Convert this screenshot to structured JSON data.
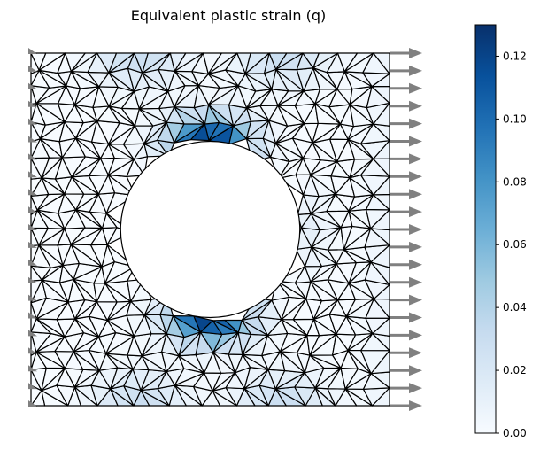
{
  "chart_data": {
    "type": "heatmap",
    "title": "Equivalent plastic strain (q)",
    "colormap": "Blues",
    "colorbar": {
      "range": [
        0.0,
        0.13
      ],
      "ticks": [
        0.0,
        0.02,
        0.04,
        0.06,
        0.08,
        0.1,
        0.12
      ],
      "tick_labels": [
        "0.00",
        "0.02",
        "0.04",
        "0.06",
        "0.08",
        "0.10",
        "0.12"
      ]
    },
    "geometry": {
      "plate": {
        "x_range": [
          0,
          1
        ],
        "y_range": [
          0,
          1
        ]
      },
      "hole": {
        "center": [
          0.5,
          0.5
        ],
        "radius": 0.25
      }
    },
    "hotspots": [
      {
        "location": [
          0.5,
          0.75
        ],
        "peak": 0.13
      },
      {
        "location": [
          0.5,
          0.25
        ],
        "peak": 0.13
      }
    ],
    "boundary_conditions": {
      "left_edge": "fixed (triangular support markers)",
      "right_edge": "applied traction (arrows pointing right)"
    },
    "colors": {
      "edge": "#000000",
      "arrow": "#808080"
    }
  }
}
